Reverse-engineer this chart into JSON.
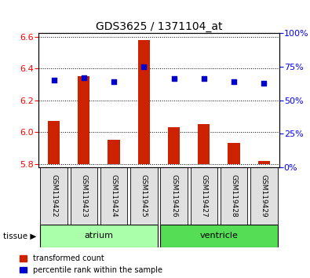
{
  "title": "GDS3625 / 1371104_at",
  "samples": [
    "GSM119422",
    "GSM119423",
    "GSM119424",
    "GSM119425",
    "GSM119426",
    "GSM119427",
    "GSM119428",
    "GSM119429"
  ],
  "transformed_count": [
    6.07,
    6.35,
    5.95,
    6.58,
    6.03,
    6.05,
    5.93,
    5.82
  ],
  "transformed_count_base": [
    5.8,
    5.8,
    5.8,
    5.8,
    5.8,
    5.8,
    5.8,
    5.8
  ],
  "percentile_rank": [
    65,
    67,
    64,
    75,
    66,
    66,
    64,
    63
  ],
  "ylim_left": [
    5.78,
    6.62
  ],
  "ylim_right": [
    0,
    100
  ],
  "yticks_left": [
    5.8,
    6.0,
    6.2,
    6.4,
    6.6
  ],
  "yticks_right": [
    0,
    25,
    50,
    75,
    100
  ],
  "groups": [
    {
      "label": "atrium",
      "indices": [
        0,
        1,
        2,
        3
      ],
      "color": "#aaffaa"
    },
    {
      "label": "ventricle",
      "indices": [
        4,
        5,
        6,
        7
      ],
      "color": "#55dd55"
    }
  ],
  "bar_color": "#cc2200",
  "dot_color": "#0000cc",
  "tissue_label": "tissue",
  "bg_color": "#f0f0f0",
  "legend_bar_label": "transformed count",
  "legend_dot_label": "percentile rank within the sample"
}
